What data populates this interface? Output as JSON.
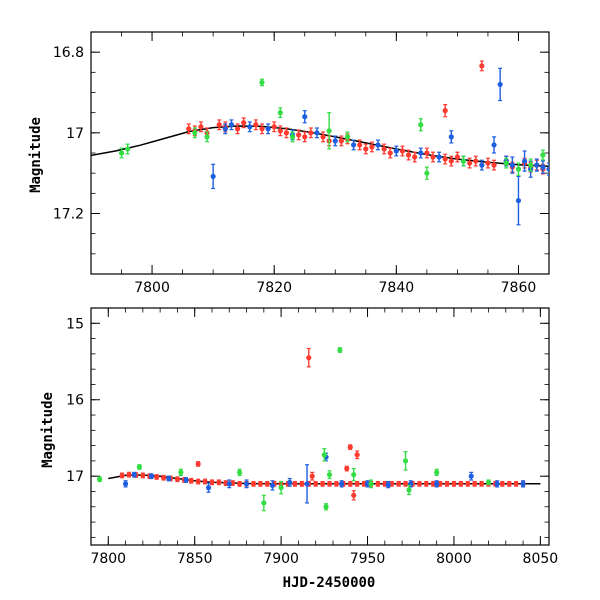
{
  "chart_data": [
    {
      "type": "scatter",
      "xlabel": "",
      "ylabel": "Magnitude",
      "xlim": [
        7790,
        7865
      ],
      "ylim": [
        17.35,
        16.75
      ],
      "y_inverted": true,
      "xticks": [
        7800,
        7820,
        7840,
        7860
      ],
      "yticks": [
        16.8,
        17.0,
        17.2
      ],
      "ytick_labels": [
        "16.8",
        "17",
        "17.2"
      ],
      "grid": false,
      "legend": "none",
      "model_curve": {
        "color": "#000000",
        "x": [
          7790,
          7794,
          7798,
          7802,
          7806,
          7810,
          7814,
          7818,
          7822,
          7826,
          7830,
          7835,
          7840,
          7845,
          7850,
          7855,
          7860,
          7865
        ],
        "y": [
          17.056,
          17.045,
          17.031,
          17.014,
          16.997,
          16.987,
          16.983,
          16.984,
          16.99,
          16.999,
          17.01,
          17.025,
          17.04,
          17.054,
          17.065,
          17.073,
          17.079,
          17.083
        ]
      },
      "series": [
        {
          "color": "#ff3b30",
          "x": [
            7806,
            7807,
            7808,
            7809,
            7811,
            7812,
            7814,
            7815,
            7817,
            7818,
            7820,
            7821,
            7822,
            7824,
            7825,
            7826,
            7828,
            7829,
            7831,
            7832,
            7834,
            7835,
            7836,
            7838,
            7839,
            7841,
            7842,
            7843,
            7845,
            7846,
            7848,
            7849,
            7850,
            7852,
            7853,
            7855,
            7856,
            7858,
            7859,
            7861,
            7862,
            7863,
            7864,
            7848,
            7854
          ],
          "y": [
            16.99,
            16.995,
            16.985,
            17.0,
            16.98,
            16.985,
            16.99,
            16.975,
            16.98,
            16.99,
            16.985,
            16.995,
            17.0,
            17.005,
            17.01,
            17.0,
            17.01,
            17.02,
            17.02,
            17.015,
            17.03,
            17.04,
            17.035,
            17.04,
            17.05,
            17.045,
            17.055,
            17.06,
            17.05,
            17.06,
            17.065,
            17.07,
            17.06,
            17.075,
            17.07,
            17.075,
            17.08,
            17.07,
            17.085,
            17.075,
            17.085,
            17.08,
            17.09,
            16.945,
            16.834
          ],
          "err": [
            0.012,
            0.012,
            0.012,
            0.012,
            0.012,
            0.012,
            0.012,
            0.012,
            0.012,
            0.012,
            0.012,
            0.012,
            0.012,
            0.012,
            0.012,
            0.012,
            0.012,
            0.012,
            0.012,
            0.012,
            0.012,
            0.012,
            0.012,
            0.012,
            0.012,
            0.012,
            0.012,
            0.012,
            0.012,
            0.012,
            0.012,
            0.012,
            0.012,
            0.012,
            0.012,
            0.012,
            0.012,
            0.012,
            0.012,
            0.012,
            0.012,
            0.012,
            0.012,
            0.015,
            0.012
          ]
        },
        {
          "color": "#1e5fe0",
          "x": [
            7810,
            7812,
            7813,
            7816,
            7819,
            7823,
            7825,
            7827,
            7830,
            7833,
            7837,
            7840,
            7844,
            7847,
            7849,
            7851,
            7854,
            7856,
            7857,
            7858,
            7859,
            7860,
            7861,
            7862,
            7863,
            7864,
            7865
          ],
          "y": [
            17.108,
            16.99,
            16.98,
            16.985,
            16.99,
            17.005,
            16.96,
            17.0,
            17.02,
            17.03,
            17.03,
            17.045,
            17.05,
            17.06,
            17.01,
            17.07,
            17.08,
            17.03,
            16.88,
            17.07,
            17.08,
            17.168,
            17.07,
            17.09,
            17.08,
            17.085,
            17.09
          ],
          "err": [
            0.03,
            0.012,
            0.012,
            0.012,
            0.012,
            0.012,
            0.015,
            0.012,
            0.012,
            0.012,
            0.012,
            0.012,
            0.012,
            0.012,
            0.015,
            0.012,
            0.012,
            0.02,
            0.04,
            0.012,
            0.02,
            0.06,
            0.025,
            0.02,
            0.015,
            0.015,
            0.015
          ]
        },
        {
          "color": "#33dd44",
          "x": [
            7795,
            7796,
            7807,
            7809,
            7818,
            7821,
            7823,
            7829,
            7832,
            7844,
            7845,
            7851,
            7858,
            7860,
            7862,
            7864
          ],
          "y": [
            17.05,
            17.04,
            17.0,
            17.01,
            16.875,
            16.95,
            17.01,
            16.995,
            17.01,
            16.98,
            17.1,
            17.07,
            17.075,
            17.09,
            17.08,
            17.055
          ],
          "err": [
            0.012,
            0.012,
            0.012,
            0.012,
            0.008,
            0.012,
            0.012,
            0.045,
            0.012,
            0.015,
            0.015,
            0.012,
            0.012,
            0.015,
            0.015,
            0.012
          ]
        }
      ]
    },
    {
      "type": "scatter",
      "xlabel": "HJD-2450000",
      "ylabel": "Magnitude",
      "xlim": [
        7790,
        8055
      ],
      "ylim": [
        17.9,
        14.8
      ],
      "y_inverted": true,
      "xticks": [
        7800,
        7850,
        7900,
        7950,
        8000,
        8050
      ],
      "yticks": [
        15,
        16,
        17
      ],
      "ytick_labels": [
        "15",
        "16",
        "17"
      ],
      "grid": false,
      "legend": "none",
      "model_curve": {
        "color": "#000000",
        "x": [
          7800,
          7810,
          7820,
          7830,
          7840,
          7850,
          7860,
          7880,
          7900,
          7950,
          8000,
          8050
        ],
        "y": [
          17.03,
          16.99,
          16.985,
          17.0,
          17.03,
          17.06,
          17.08,
          17.095,
          17.1,
          17.1,
          17.1,
          17.1
        ]
      },
      "series": [
        {
          "color": "#ff3b30",
          "x": [
            7808,
            7812,
            7816,
            7820,
            7824,
            7828,
            7832,
            7836,
            7840,
            7844,
            7848,
            7852,
            7856,
            7860,
            7864,
            7868,
            7872,
            7876,
            7880,
            7884,
            7888,
            7892,
            7896,
            7900,
            7904,
            7908,
            7912,
            7916,
            7920,
            7924,
            7928,
            7932,
            7936,
            7940,
            7944,
            7948,
            7952,
            7956,
            7960,
            7964,
            7968,
            7972,
            7976,
            7980,
            7984,
            7988,
            7992,
            7996,
            8000,
            8004,
            8008,
            8012,
            8016,
            8020,
            8024,
            8028,
            8032,
            8036,
            8040,
            7916,
            7940,
            7942,
            7852,
            7918,
            7938,
            7944
          ],
          "y": [
            16.99,
            16.98,
            16.985,
            16.99,
            17.0,
            17.01,
            17.02,
            17.03,
            17.04,
            17.05,
            17.06,
            17.07,
            17.07,
            17.08,
            17.08,
            17.09,
            17.09,
            17.1,
            17.1,
            17.1,
            17.1,
            17.1,
            17.1,
            17.1,
            17.1,
            17.1,
            17.1,
            17.1,
            17.1,
            17.1,
            17.1,
            17.1,
            17.1,
            17.1,
            17.1,
            17.1,
            17.1,
            17.1,
            17.1,
            17.1,
            17.1,
            17.1,
            17.1,
            17.1,
            17.1,
            17.1,
            17.1,
            17.1,
            17.1,
            17.1,
            17.1,
            17.1,
            17.1,
            17.1,
            17.1,
            17.1,
            17.1,
            17.1,
            17.1,
            15.45,
            16.62,
            17.25,
            16.84,
            17.0,
            16.9,
            16.72
          ],
          "err": [
            0.03,
            0.03,
            0.03,
            0.03,
            0.03,
            0.03,
            0.03,
            0.03,
            0.03,
            0.03,
            0.03,
            0.03,
            0.03,
            0.03,
            0.03,
            0.03,
            0.03,
            0.03,
            0.03,
            0.03,
            0.03,
            0.03,
            0.03,
            0.03,
            0.03,
            0.03,
            0.03,
            0.03,
            0.03,
            0.03,
            0.03,
            0.03,
            0.03,
            0.03,
            0.03,
            0.03,
            0.03,
            0.03,
            0.03,
            0.03,
            0.03,
            0.03,
            0.03,
            0.03,
            0.03,
            0.03,
            0.03,
            0.03,
            0.03,
            0.03,
            0.03,
            0.03,
            0.03,
            0.03,
            0.03,
            0.03,
            0.03,
            0.03,
            0.03,
            0.12,
            0.03,
            0.06,
            0.03,
            0.05,
            0.03,
            0.05
          ]
        },
        {
          "color": "#1e5fe0",
          "x": [
            7810,
            7815,
            7825,
            7835,
            7845,
            7858,
            7870,
            7880,
            7895,
            7905,
            7915,
            7926,
            7935,
            7950,
            7962,
            7975,
            7990,
            8010,
            8025,
            8040
          ],
          "y": [
            17.1,
            16.98,
            17.0,
            17.03,
            17.05,
            17.15,
            17.1,
            17.1,
            17.12,
            17.08,
            17.1,
            16.75,
            17.1,
            17.1,
            17.11,
            17.1,
            17.1,
            17.0,
            17.1,
            17.1
          ],
          "err": [
            0.04,
            0.03,
            0.03,
            0.03,
            0.03,
            0.06,
            0.05,
            0.05,
            0.06,
            0.05,
            0.25,
            0.05,
            0.04,
            0.04,
            0.04,
            0.04,
            0.04,
            0.05,
            0.04,
            0.04
          ]
        },
        {
          "color": "#33dd44",
          "x": [
            7795,
            7818,
            7842,
            7876,
            7890,
            7900,
            7925,
            7926,
            7928,
            7934,
            7942,
            7952,
            7972,
            7974,
            7990,
            8020
          ],
          "y": [
            17.04,
            16.88,
            16.95,
            16.95,
            17.35,
            17.15,
            16.72,
            17.4,
            16.98,
            15.35,
            16.98,
            17.1,
            16.8,
            17.18,
            16.95,
            17.08
          ],
          "err": [
            0.03,
            0.03,
            0.04,
            0.04,
            0.1,
            0.08,
            0.08,
            0.04,
            0.05,
            0.03,
            0.08,
            0.05,
            0.12,
            0.06,
            0.04,
            0.03
          ]
        }
      ]
    }
  ]
}
